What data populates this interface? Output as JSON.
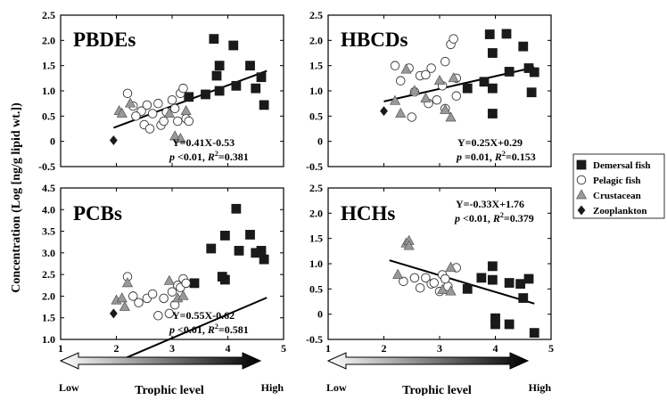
{
  "y_axis_label": "Concentration (Log [ng/g lipid wt.])",
  "legend": [
    {
      "name": "Demersal fish",
      "marker": "square",
      "color": "#1a1a1a"
    },
    {
      "name": "Pelagic fish",
      "marker": "circle",
      "color": "#ffffff"
    },
    {
      "name": "Crustacean",
      "marker": "triangle",
      "color": "#999999"
    },
    {
      "name": "Zooplankton",
      "marker": "diamond",
      "color": "#1a1a1a"
    }
  ],
  "trophic_arrows": [
    {
      "low_label": "Low",
      "axis_label": "Trophic level",
      "high_label": "High"
    },
    {
      "low_label": "Low",
      "axis_label": "Trophic level",
      "high_label": "High"
    }
  ],
  "chart_data": [
    {
      "type": "scatter",
      "title": "PBDEs",
      "xlim": [
        1,
        5
      ],
      "ylim": [
        -0.5,
        2.5
      ],
      "xticks": [],
      "yticks": [
        -0.5,
        0,
        0.5,
        1,
        1.5,
        2,
        2.5
      ],
      "ytick_labels": [
        "-0.5",
        "0",
        "0.5",
        "1.0",
        "1.5",
        "2.0",
        "2.5"
      ],
      "equation": "Y=0.41X-0.53",
      "stats_p": "p <0.01, ",
      "stats_r": "R 2 =0.381",
      "fit": {
        "slope": 0.41,
        "intercept": -0.53,
        "x_range": [
          1.95,
          4.7
        ]
      },
      "series": [
        {
          "name": "Demersal fish",
          "points": [
            [
              3.75,
              2.03
            ],
            [
              4.1,
              1.9
            ],
            [
              3.85,
              1.5
            ],
            [
              4.4,
              1.5
            ],
            [
              3.8,
              1.3
            ],
            [
              4.6,
              1.27
            ],
            [
              3.6,
              0.93
            ],
            [
              3.85,
              1.0
            ],
            [
              4.15,
              1.1
            ],
            [
              4.5,
              1.05
            ],
            [
              4.65,
              0.72
            ],
            [
              3.3,
              0.88
            ]
          ]
        },
        {
          "name": "Pelagic fish",
          "points": [
            [
              2.2,
              0.95
            ],
            [
              2.3,
              0.7
            ],
            [
              2.45,
              0.6
            ],
            [
              2.5,
              0.33
            ],
            [
              2.6,
              0.25
            ],
            [
              2.65,
              0.55
            ],
            [
              2.75,
              0.75
            ],
            [
              2.8,
              0.32
            ],
            [
              2.85,
              0.4
            ],
            [
              2.9,
              0.58
            ],
            [
              3.0,
              0.82
            ],
            [
              3.05,
              0.65
            ],
            [
              3.15,
              0.95
            ],
            [
              3.2,
              1.05
            ],
            [
              3.25,
              0.45
            ],
            [
              3.3,
              0.4
            ],
            [
              2.35,
              0.5
            ],
            [
              2.55,
              0.72
            ],
            [
              3.1,
              0.4
            ]
          ]
        },
        {
          "name": "Crustacean",
          "points": [
            [
              2.05,
              0.6
            ],
            [
              2.1,
              0.55
            ],
            [
              2.25,
              0.75
            ],
            [
              2.95,
              0.55
            ],
            [
              3.05,
              0.1
            ],
            [
              3.15,
              0.05
            ],
            [
              3.25,
              0.6
            ]
          ]
        },
        {
          "name": "Zooplankton",
          "points": [
            [
              1.95,
              0.02
            ]
          ]
        }
      ]
    },
    {
      "type": "scatter",
      "title": "HBCDs",
      "xlim": [
        1,
        5
      ],
      "ylim": [
        -0.5,
        2.5
      ],
      "xticks": [],
      "yticks": [
        -0.5,
        0,
        0.5,
        1,
        1.5,
        2,
        2.5
      ],
      "ytick_labels": [
        "-0.5",
        "0",
        "0.5",
        "1.0",
        "1.5",
        "2.0",
        "2.5"
      ],
      "equation": "Y=0.25X+0.29",
      "stats_p": "p =0.01, ",
      "stats_r": "R 2 =0.153",
      "fit": {
        "slope": 0.25,
        "intercept": 0.29,
        "x_range": [
          2.0,
          4.7
        ]
      },
      "series": [
        {
          "name": "Demersal fish",
          "points": [
            [
              3.9,
              2.12
            ],
            [
              4.2,
              2.13
            ],
            [
              3.95,
              1.75
            ],
            [
              4.5,
              1.88
            ],
            [
              4.6,
              1.45
            ],
            [
              4.25,
              1.38
            ],
            [
              4.7,
              1.37
            ],
            [
              3.8,
              1.18
            ],
            [
              3.95,
              1.05
            ],
            [
              3.5,
              1.05
            ],
            [
              4.65,
              0.97
            ],
            [
              3.95,
              0.55
            ]
          ]
        },
        {
          "name": "Pelagic fish",
          "points": [
            [
              2.2,
              1.5
            ],
            [
              2.3,
              1.2
            ],
            [
              2.45,
              1.45
            ],
            [
              2.55,
              0.98
            ],
            [
              2.65,
              1.3
            ],
            [
              2.75,
              1.32
            ],
            [
              2.85,
              1.45
            ],
            [
              3.1,
              1.58
            ],
            [
              3.2,
              1.92
            ],
            [
              3.25,
              2.03
            ],
            [
              2.5,
              0.48
            ],
            [
              2.8,
              0.75
            ],
            [
              2.95,
              0.82
            ],
            [
              3.1,
              0.65
            ],
            [
              3.3,
              0.9
            ],
            [
              3.05,
              1.1
            ],
            [
              3.3,
              1.25
            ]
          ]
        },
        {
          "name": "Crustacean",
          "points": [
            [
              2.2,
              0.8
            ],
            [
              2.3,
              0.55
            ],
            [
              2.4,
              1.42
            ],
            [
              2.55,
              1.0
            ],
            [
              2.75,
              0.85
            ],
            [
              3.0,
              1.2
            ],
            [
              3.1,
              0.62
            ],
            [
              3.2,
              0.47
            ],
            [
              3.25,
              1.25
            ]
          ]
        },
        {
          "name": "Zooplankton",
          "points": [
            [
              2.0,
              0.6
            ]
          ]
        }
      ]
    },
    {
      "type": "scatter",
      "title": "PCBs",
      "xlim": [
        1,
        5
      ],
      "ylim": [
        1,
        4.5
      ],
      "xticks": [
        1,
        2,
        3,
        4,
        5
      ],
      "yticks": [
        1,
        1.5,
        2,
        2.5,
        3,
        3.5,
        4,
        4.5
      ],
      "ytick_labels": [
        "1.0",
        "1.5",
        "2.0",
        "2.5",
        "3.0",
        "3.5",
        "4.0",
        "4.5"
      ],
      "equation": "Y=0.55X-0.62",
      "stats_p": "p <0.01, ",
      "stats_r": "R 2 =0.581",
      "fit": {
        "slope": 0.55,
        "intercept": -0.62,
        "x_range": [
          1.95,
          4.7
        ]
      },
      "series": [
        {
          "name": "Demersal fish",
          "points": [
            [
              4.15,
              4.02
            ],
            [
              3.95,
              3.4
            ],
            [
              4.4,
              3.42
            ],
            [
              4.2,
              3.05
            ],
            [
              3.7,
              3.1
            ],
            [
              4.5,
              3.0
            ],
            [
              4.6,
              3.05
            ],
            [
              4.65,
              2.85
            ],
            [
              3.9,
              2.45
            ],
            [
              3.95,
              2.38
            ],
            [
              3.4,
              2.3
            ]
          ]
        },
        {
          "name": "Pelagic fish",
          "points": [
            [
              2.2,
              2.45
            ],
            [
              2.3,
              2.0
            ],
            [
              2.4,
              1.85
            ],
            [
              2.55,
              1.95
            ],
            [
              2.65,
              2.05
            ],
            [
              2.75,
              1.55
            ],
            [
              2.85,
              1.95
            ],
            [
              3.0,
              2.1
            ],
            [
              3.1,
              2.25
            ],
            [
              3.15,
              2.2
            ],
            [
              3.2,
              2.4
            ],
            [
              3.25,
              2.3
            ],
            [
              2.95,
              1.6
            ],
            [
              3.05,
              1.8
            ]
          ]
        },
        {
          "name": "Crustacean",
          "points": [
            [
              2.0,
              1.9
            ],
            [
              2.1,
              1.95
            ],
            [
              2.2,
              2.3
            ],
            [
              2.95,
              2.35
            ],
            [
              3.1,
              1.95
            ],
            [
              3.2,
              2.0
            ],
            [
              2.15,
              1.75
            ]
          ]
        },
        {
          "name": "Zooplankton",
          "points": [
            [
              1.95,
              1.6
            ]
          ]
        }
      ]
    },
    {
      "type": "scatter",
      "title": "HCHs",
      "xlim": [
        1,
        5
      ],
      "ylim": [
        -0.5,
        2.5
      ],
      "xticks": [
        1,
        2,
        3,
        4,
        5
      ],
      "yticks": [
        -0.5,
        0,
        0.5,
        1,
        1.5,
        2,
        2.5
      ],
      "ytick_labels": [
        "-0.5",
        "0",
        "0.5",
        "1.0",
        "1.5",
        "2.0",
        "2.5"
      ],
      "equation": "Y=-0.33X+1.76",
      "stats_p": "p <0.01, ",
      "stats_r": "R 2 =0.379",
      "fit": {
        "slope": -0.33,
        "intercept": 1.76,
        "x_range": [
          2.1,
          4.7
        ]
      },
      "series": [
        {
          "name": "Demersal fish",
          "points": [
            [
              3.95,
              0.95
            ],
            [
              3.75,
              0.72
            ],
            [
              3.95,
              0.68
            ],
            [
              4.25,
              0.62
            ],
            [
              4.45,
              0.6
            ],
            [
              4.6,
              0.7
            ],
            [
              3.5,
              0.5
            ],
            [
              4.5,
              0.32
            ],
            [
              4.0,
              -0.08
            ],
            [
              4.0,
              -0.2
            ],
            [
              4.25,
              -0.2
            ],
            [
              4.7,
              -0.37
            ]
          ]
        },
        {
          "name": "Pelagic fish",
          "points": [
            [
              2.35,
              0.65
            ],
            [
              2.55,
              0.72
            ],
            [
              2.65,
              0.52
            ],
            [
              2.75,
              0.72
            ],
            [
              2.85,
              0.6
            ],
            [
              2.9,
              0.62
            ],
            [
              3.05,
              0.78
            ],
            [
              3.15,
              0.55
            ],
            [
              3.3,
              0.92
            ],
            [
              3.0,
              0.45
            ],
            [
              3.1,
              0.7
            ]
          ]
        },
        {
          "name": "Crustacean",
          "points": [
            [
              2.25,
              0.78
            ],
            [
              2.4,
              1.4
            ],
            [
              2.45,
              1.45
            ],
            [
              2.45,
              1.35
            ],
            [
              3.05,
              0.48
            ],
            [
              3.2,
              0.45
            ],
            [
              3.2,
              0.92
            ]
          ]
        },
        {
          "name": "Zooplankton",
          "points": []
        }
      ]
    }
  ]
}
